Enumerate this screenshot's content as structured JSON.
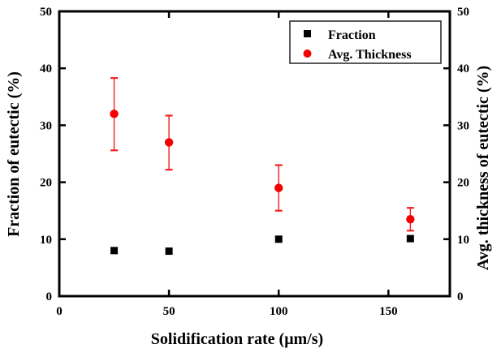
{
  "chart_data": {
    "type": "scatter",
    "title": "",
    "xlabel": "Solidification rate (μm/s)",
    "ylabel_left": "Fraction of eutectic (%)",
    "ylabel_right": "Avg. thickness of eutectic (%)",
    "xlim": [
      0,
      178
    ],
    "ylim": [
      0,
      50
    ],
    "x_ticks": [
      0,
      50,
      100,
      150
    ],
    "y_ticks": [
      0,
      10,
      20,
      30,
      40,
      50
    ],
    "grid": false,
    "legend_position": "top-right",
    "series": [
      {
        "name": "Fraction",
        "marker": "square",
        "color": "#000000",
        "axis": "left",
        "x": [
          25,
          50,
          100,
          160
        ],
        "y": [
          8.0,
          7.9,
          10.0,
          10.1
        ]
      },
      {
        "name": "Avg. Thickness",
        "marker": "circle",
        "color": "#f40000",
        "axis": "right",
        "x": [
          25,
          50,
          100,
          160
        ],
        "y": [
          32,
          27,
          19,
          13.5
        ],
        "y_err_plus": [
          6.3,
          4.7,
          4.0,
          2.0
        ],
        "y_err_minus": [
          6.4,
          4.8,
          4.0,
          2.0
        ]
      }
    ],
    "colors": {
      "axis": "#000000",
      "error_bar": "#f42020",
      "background": "#ffffff",
      "legend_border": "#222222"
    }
  }
}
